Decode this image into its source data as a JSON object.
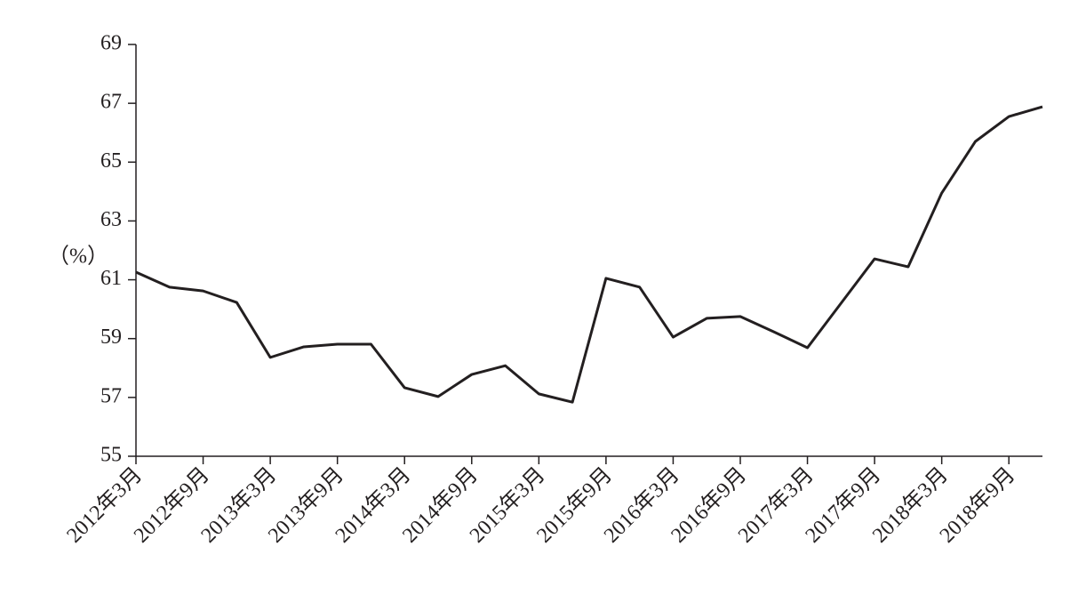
{
  "chart_data": {
    "type": "line",
    "y_label": "（%）",
    "categories": [
      "2012年3月",
      null,
      "2012年9月",
      null,
      "2013年3月",
      null,
      "2013年9月",
      null,
      "2014年3月",
      null,
      "2014年9月",
      null,
      "2015年3月",
      null,
      "2015年9月",
      null,
      "2016年3月",
      null,
      "2016年9月",
      null,
      "2017年3月",
      null,
      "2017年9月",
      null,
      "2018年3月",
      null,
      "2018年9月",
      null
    ],
    "values": [
      61.26,
      60.75,
      60.62,
      60.23,
      58.36,
      58.72,
      58.81,
      58.81,
      57.33,
      57.03,
      57.78,
      58.08,
      57.12,
      56.84,
      61.05,
      60.75,
      59.05,
      59.69,
      59.75,
      59.23,
      58.69,
      60.2,
      61.71,
      61.44,
      63.95,
      65.7,
      66.55,
      66.88
    ],
    "color": "#231f20",
    "ylim": [
      55,
      69
    ],
    "yticks": [
      55,
      57,
      59,
      61,
      63,
      65,
      67,
      69
    ]
  }
}
